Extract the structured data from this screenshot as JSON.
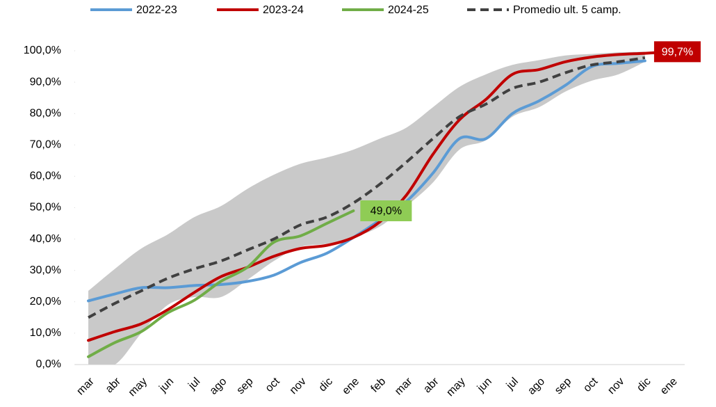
{
  "chart_data": {
    "type": "line",
    "categories": [
      "mar",
      "abr",
      "may",
      "jun",
      "jul",
      "ago",
      "sep",
      "oct",
      "nov",
      "dic",
      "ene",
      "feb",
      "mar",
      "abr",
      "may",
      "jun",
      "jul",
      "ago",
      "sep",
      "oct",
      "nov",
      "dic",
      "ene"
    ],
    "ylim": [
      0,
      100
    ],
    "yticks": [
      {
        "value": 0,
        "label": "0,0%"
      },
      {
        "value": 10,
        "label": "10,0%"
      },
      {
        "value": 20,
        "label": "20,0%"
      },
      {
        "value": 30,
        "label": "30,0%"
      },
      {
        "value": 40,
        "label": "40,0%"
      },
      {
        "value": 50,
        "label": "50,0%"
      },
      {
        "value": 60,
        "label": "60,0%"
      },
      {
        "value": 70,
        "label": "70,0%"
      },
      {
        "value": 80,
        "label": "80,0%"
      },
      {
        "value": 90,
        "label": "90,0%"
      },
      {
        "value": 100,
        "label": "100,0%"
      }
    ],
    "band": {
      "color": "#c9c9c9",
      "upper": [
        23.5,
        30.5,
        37,
        41.5,
        47,
        50.5,
        56,
        60.5,
        64,
        66,
        68.5,
        72,
        75.5,
        82,
        88.5,
        92.5,
        95.5,
        97,
        98.5,
        99,
        99.5,
        99.7,
        null
      ],
      "lower": [
        0,
        0,
        10,
        19,
        21.5,
        21.5,
        27,
        33,
        37.5,
        38.5,
        40.5,
        44,
        50.5,
        58,
        68.5,
        71.5,
        79,
        82,
        87,
        90.5,
        92.5,
        96.5,
        null
      ]
    },
    "series": [
      {
        "name": "2022-23",
        "color": "#5b9bd5",
        "dashed": false,
        "values": [
          20.3,
          22.5,
          24.5,
          24.5,
          25.2,
          25.5,
          26.5,
          28.5,
          32.5,
          35.5,
          40.5,
          46,
          52,
          61,
          72,
          72,
          80,
          84,
          89,
          95,
          96,
          96.8,
          null
        ]
      },
      {
        "name": "2023-24",
        "color": "#c00000",
        "dashed": false,
        "label_color": "#c00000",
        "label_text_color": "#ffffff",
        "values": [
          7.7,
          10.5,
          13,
          17.5,
          23,
          28,
          31,
          34.5,
          37,
          38,
          40.5,
          45.5,
          54,
          67,
          78,
          84.5,
          92.5,
          94,
          96.5,
          98,
          98.8,
          99.2,
          99.7
        ],
        "value_labels": [
          null,
          null,
          null,
          null,
          null,
          null,
          null,
          null,
          null,
          null,
          null,
          null,
          null,
          null,
          null,
          null,
          null,
          null,
          null,
          null,
          null,
          null,
          "99,7%"
        ]
      },
      {
        "name": "2024-25",
        "color": "#70ad47",
        "dashed": false,
        "label_color": "#8fcc55",
        "label_text_color": "#000000",
        "values": [
          2.5,
          7,
          10.5,
          16.5,
          20.5,
          26.5,
          31,
          39,
          41,
          45,
          49,
          null,
          null,
          null,
          null,
          null,
          null,
          null,
          null,
          null,
          null,
          null,
          null
        ],
        "value_labels": [
          null,
          null,
          null,
          null,
          null,
          null,
          null,
          null,
          null,
          null,
          "49,0%",
          null,
          null,
          null,
          null,
          null,
          null,
          null,
          null,
          null,
          null,
          null,
          null
        ]
      },
      {
        "name": "Promedio ult. 5 camp.",
        "color": "#404040",
        "dashed": true,
        "values": [
          15,
          19.5,
          23.5,
          27.5,
          30.5,
          33,
          36.5,
          40,
          44.5,
          47,
          51.5,
          57.5,
          64.5,
          72,
          79,
          83,
          88,
          90,
          93,
          95.5,
          96.5,
          97.8,
          null
        ]
      }
    ]
  }
}
